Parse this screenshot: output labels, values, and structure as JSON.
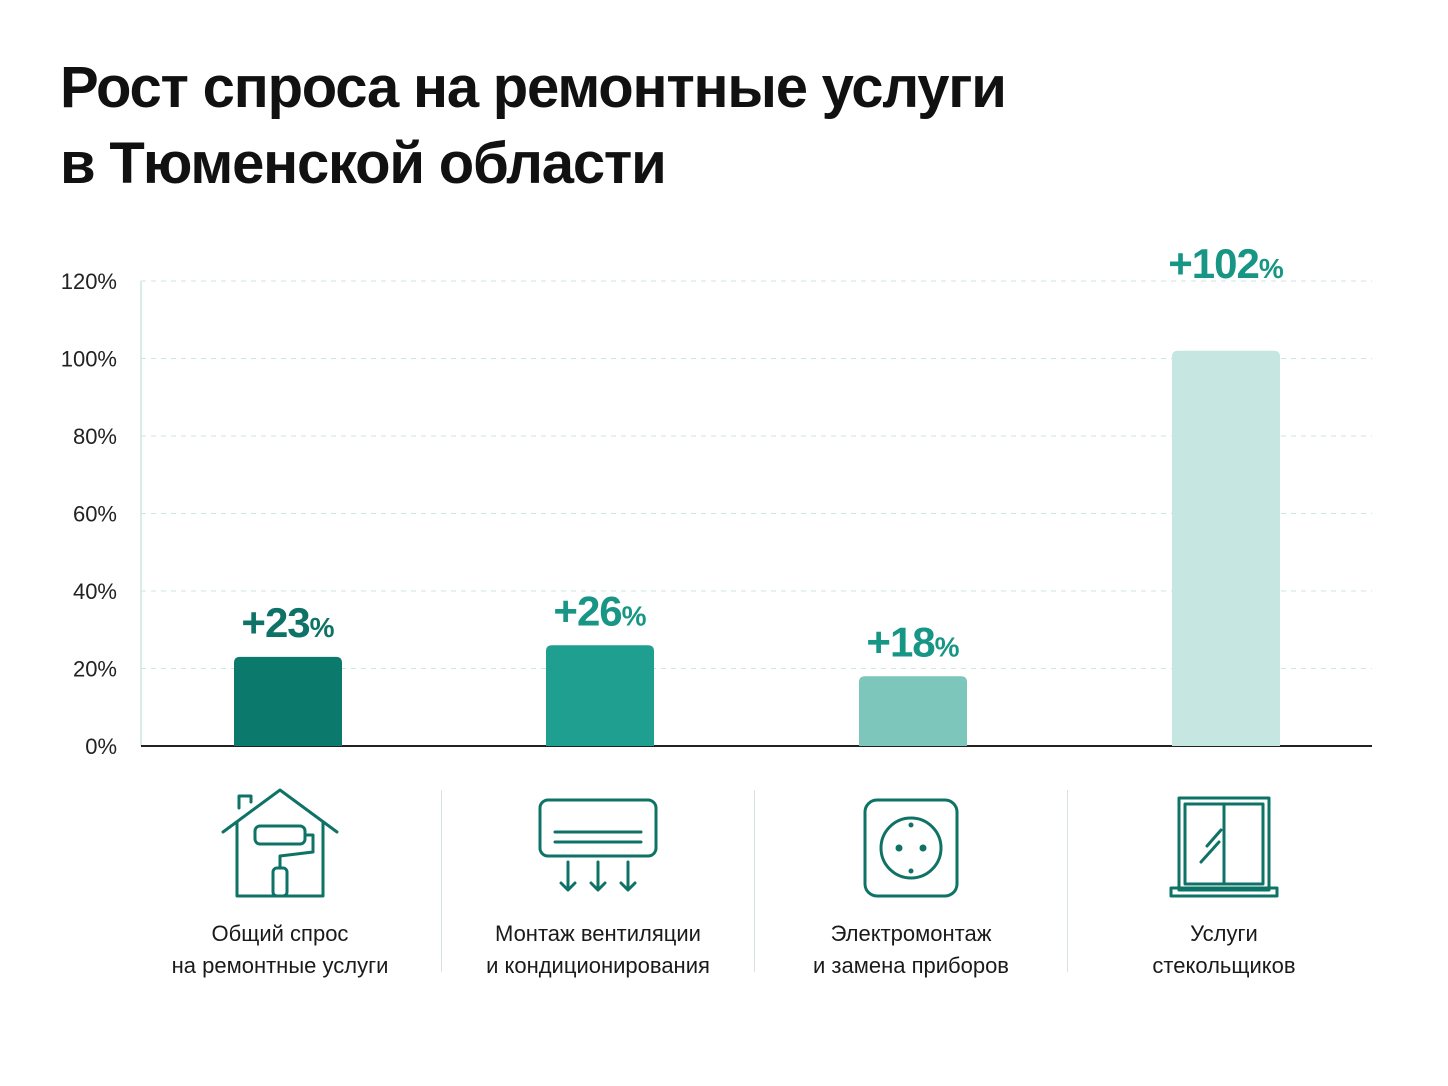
{
  "title": {
    "line1": "Рост спроса на ремонтные услуги",
    "line2": "в Тюменской области"
  },
  "colors": {
    "bar1": "#0b7a6c",
    "bar2": "#1f9f8f",
    "bar3": "#7cc6bb",
    "bar4": "#c6e6e2",
    "label_dark": "#0e7366",
    "label_mid": "#179585",
    "axis": "#222222",
    "grid": "#cfe5e1",
    "icon": "#0e7366"
  },
  "chart_data": {
    "type": "bar",
    "categories": [
      "Общий спрос на ремонтные услуги",
      "Монтаж вентиляции и кондиционирования",
      "Электромонтаж и замена приборов",
      "Услуги стекольщиков"
    ],
    "values": [
      23,
      26,
      18,
      102
    ],
    "value_labels": [
      {
        "num": "+23",
        "unit": "%"
      },
      {
        "num": "+26",
        "unit": "%"
      },
      {
        "num": "+18",
        "unit": "%"
      },
      {
        "num": "+102",
        "unit": "%"
      }
    ],
    "ylim": [
      0,
      120
    ],
    "yticks": [
      "0%",
      "20%",
      "40%",
      "60%",
      "80%",
      "100%",
      "120%"
    ],
    "grid": true,
    "legend": "none"
  },
  "categories_ui": [
    {
      "icon": "house-paint-roller-icon",
      "line1": "Общий спрос",
      "line2": "на ремонтные услуги"
    },
    {
      "icon": "air-conditioner-icon",
      "line1": "Монтаж вентиляции",
      "line2": "и кондиционирования"
    },
    {
      "icon": "power-socket-icon",
      "line1": "Электромонтаж",
      "line2": "и замена приборов"
    },
    {
      "icon": "window-glass-icon",
      "line1": "Услуги",
      "line2": "стекольщиков"
    }
  ]
}
